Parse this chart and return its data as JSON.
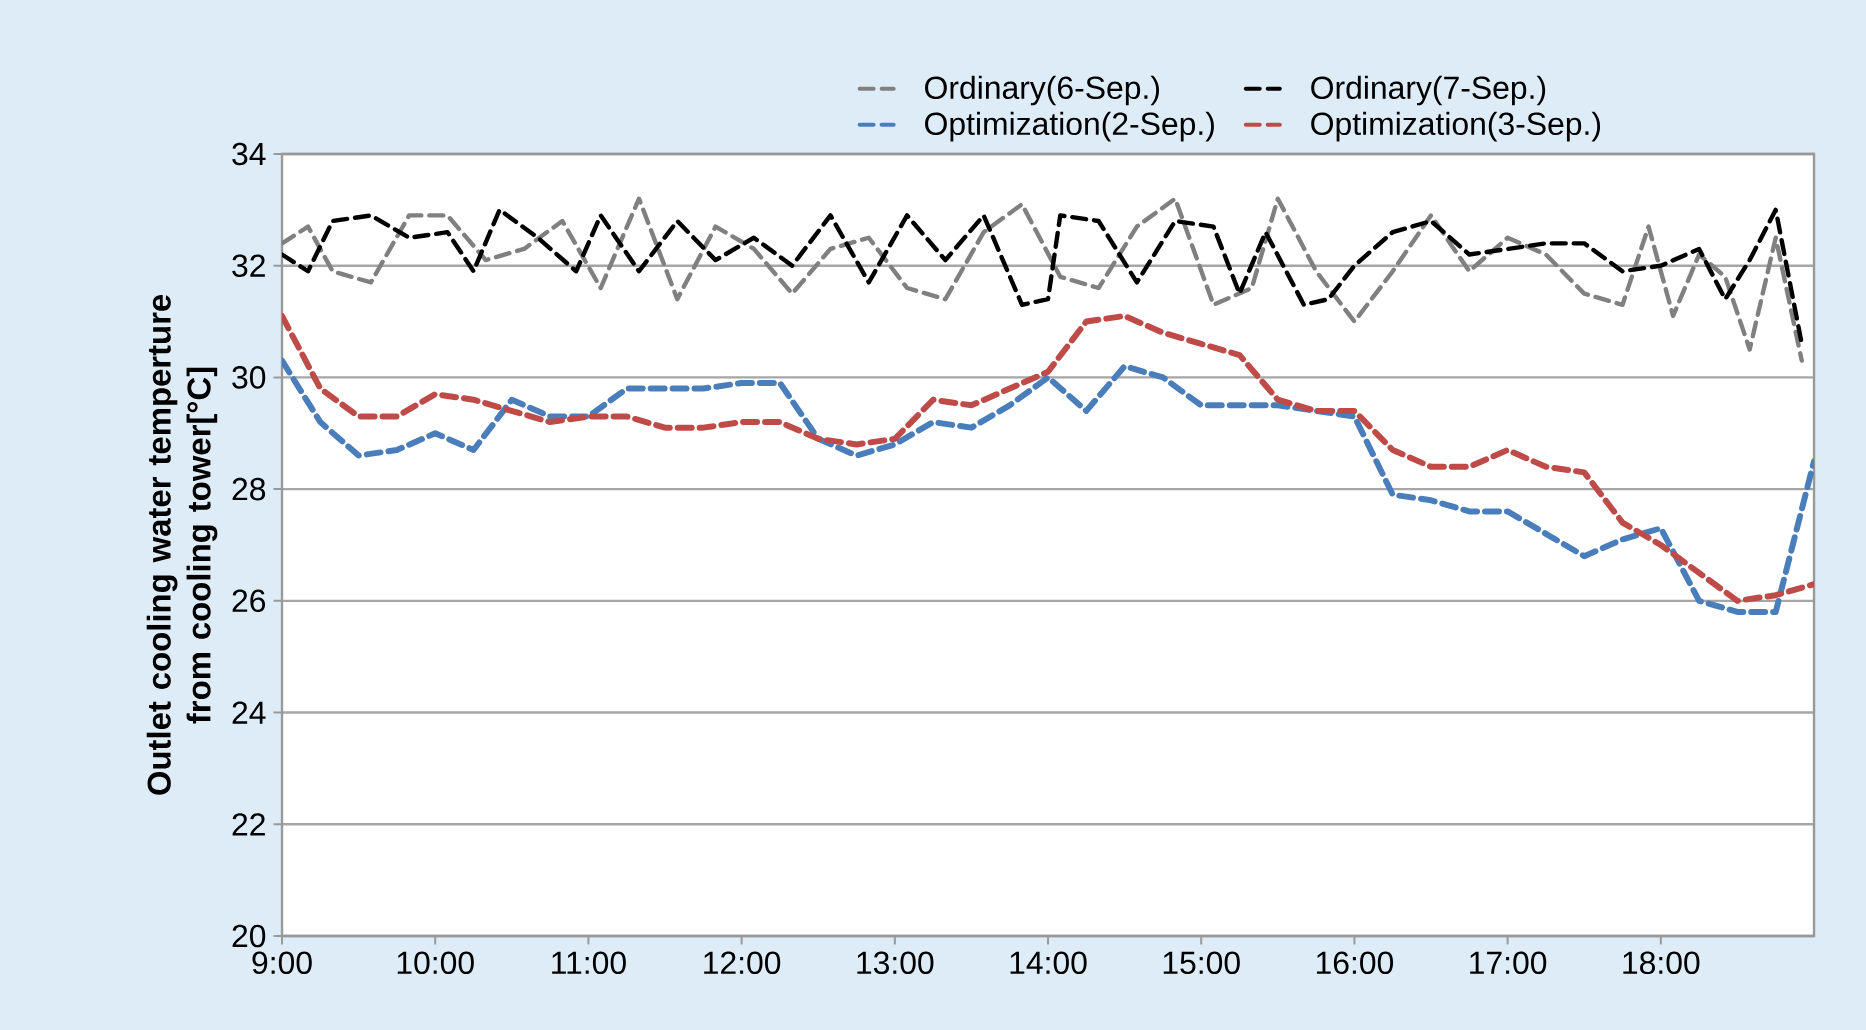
{
  "chart_data": {
    "type": "line",
    "ylabel": "Outlet cooling water temperture from cooling tower[°C]",
    "xlim": [
      9,
      19
    ],
    "ylim": [
      20,
      34
    ],
    "xticks": [
      {
        "value": 9,
        "label": "9:00"
      },
      {
        "value": 10,
        "label": "10:00"
      },
      {
        "value": 11,
        "label": "11:00"
      },
      {
        "value": 12,
        "label": "12:00"
      },
      {
        "value": 13,
        "label": "13:00"
      },
      {
        "value": 14,
        "label": "14:00"
      },
      {
        "value": 15,
        "label": "15:00"
      },
      {
        "value": 16,
        "label": "16:00"
      },
      {
        "value": 17,
        "label": "17:00"
      },
      {
        "value": 18,
        "label": "18:00"
      }
    ],
    "yticks": [
      20,
      22,
      24,
      26,
      28,
      30,
      32,
      34
    ],
    "grid": "y",
    "legend": "top",
    "line_style": "dashed",
    "series": [
      {
        "name": "Ordinary(6-Sep.)",
        "color": "#808080",
        "x": [
          9,
          9.17,
          9.33,
          9.58,
          9.83,
          10.08,
          10.33,
          10.58,
          10.83,
          11.08,
          11.33,
          11.58,
          11.83,
          12.08,
          12.33,
          12.58,
          12.83,
          13.08,
          13.33,
          13.58,
          13.83,
          14.08,
          14.33,
          14.58,
          14.83,
          15.08,
          15.33,
          15.5,
          15.75,
          16,
          16.25,
          16.5,
          16.75,
          17,
          17.25,
          17.5,
          17.75,
          17.92,
          18.08,
          18.25,
          18.42,
          18.58,
          18.75,
          18.92
        ],
        "values": [
          32.4,
          32.7,
          31.9,
          31.7,
          32.9,
          32.9,
          32.1,
          32.3,
          32.8,
          31.6,
          33.2,
          31.4,
          32.7,
          32.3,
          31.5,
          32.3,
          32.5,
          31.6,
          31.4,
          32.6,
          33.1,
          31.8,
          31.6,
          32.7,
          33.2,
          31.3,
          31.6,
          33.2,
          31.9,
          31.0,
          31.9,
          32.9,
          31.9,
          32.5,
          32.2,
          31.5,
          31.3,
          32.7,
          31.1,
          32.2,
          31.8,
          30.5,
          32.5,
          30.3
        ]
      },
      {
        "name": "Ordinary(7-Sep.)",
        "color": "#000000",
        "x": [
          9,
          9.17,
          9.33,
          9.58,
          9.83,
          10.08,
          10.25,
          10.42,
          10.67,
          10.92,
          11.08,
          11.33,
          11.58,
          11.83,
          12.08,
          12.33,
          12.58,
          12.83,
          13.08,
          13.33,
          13.58,
          13.83,
          14,
          14.08,
          14.33,
          14.58,
          14.83,
          15.08,
          15.25,
          15.42,
          15.67,
          15.83,
          16,
          16.25,
          16.5,
          16.75,
          17,
          17.25,
          17.5,
          17.75,
          18,
          18.25,
          18.42,
          18.58,
          18.75,
          18.92
        ],
        "values": [
          32.2,
          31.9,
          32.8,
          32.9,
          32.5,
          32.6,
          31.9,
          33.0,
          32.5,
          31.9,
          32.9,
          31.9,
          32.8,
          32.1,
          32.5,
          32.0,
          32.9,
          31.7,
          32.9,
          32.1,
          32.9,
          31.3,
          31.4,
          32.9,
          32.8,
          31.7,
          32.8,
          32.7,
          31.5,
          32.6,
          31.3,
          31.4,
          32.0,
          32.6,
          32.8,
          32.2,
          32.3,
          32.4,
          32.4,
          31.9,
          32.0,
          32.3,
          31.4,
          32.1,
          33.0,
          30.6
        ]
      },
      {
        "name": "Optimization(2-Sep.)",
        "color": "#4a7ebb",
        "x": [
          9,
          9.25,
          9.5,
          9.75,
          10,
          10.25,
          10.5,
          10.75,
          11,
          11.25,
          11.5,
          11.75,
          12,
          12.25,
          12.5,
          12.75,
          13,
          13.25,
          13.5,
          13.75,
          14,
          14.25,
          14.5,
          14.75,
          15,
          15.25,
          15.5,
          15.75,
          16,
          16.25,
          16.5,
          16.75,
          17,
          17.25,
          17.5,
          17.75,
          18,
          18.25,
          18.5,
          18.75,
          19
        ],
        "values": [
          30.3,
          29.2,
          28.6,
          28.7,
          29.0,
          28.7,
          29.6,
          29.3,
          29.3,
          29.8,
          29.8,
          29.8,
          29.9,
          29.9,
          28.9,
          28.6,
          28.8,
          29.2,
          29.1,
          29.5,
          30.0,
          29.4,
          30.2,
          30.0,
          29.5,
          29.5,
          29.5,
          29.4,
          29.3,
          27.9,
          27.8,
          27.6,
          27.6,
          27.2,
          26.8,
          27.1,
          27.3,
          26.0,
          25.8,
          25.8,
          28.5
        ]
      },
      {
        "name": "Optimization(3-Sep.)",
        "color": "#be4b48",
        "x": [
          9,
          9.25,
          9.5,
          9.75,
          10,
          10.25,
          10.5,
          10.75,
          11,
          11.25,
          11.5,
          11.75,
          12,
          12.25,
          12.5,
          12.75,
          13,
          13.25,
          13.5,
          13.75,
          14,
          14.25,
          14.5,
          14.75,
          15,
          15.25,
          15.5,
          15.75,
          16,
          16.25,
          16.5,
          16.75,
          17,
          17.25,
          17.5,
          17.75,
          18,
          18.25,
          18.5,
          18.75,
          19
        ],
        "values": [
          31.1,
          29.8,
          29.3,
          29.3,
          29.7,
          29.6,
          29.4,
          29.2,
          29.3,
          29.3,
          29.1,
          29.1,
          29.2,
          29.2,
          28.9,
          28.8,
          28.9,
          29.6,
          29.5,
          29.8,
          30.1,
          31.0,
          31.1,
          30.8,
          30.6,
          30.4,
          29.6,
          29.4,
          29.4,
          28.7,
          28.4,
          28.4,
          28.7,
          28.4,
          28.3,
          27.4,
          27.0,
          26.5,
          26.0,
          26.1,
          26.3
        ]
      }
    ]
  }
}
